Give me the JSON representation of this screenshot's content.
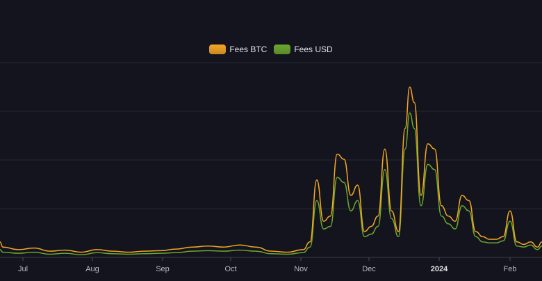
{
  "chart_data": {
    "type": "line",
    "legend": {
      "position": "top-center"
    },
    "grid": true,
    "x_ticks": [
      {
        "label": "Jul",
        "bold": false
      },
      {
        "label": "Aug",
        "bold": false
      },
      {
        "label": "Sep",
        "bold": false
      },
      {
        "label": "Oct",
        "bold": false
      },
      {
        "label": "Nov",
        "bold": false
      },
      {
        "label": "Dec",
        "bold": false
      },
      {
        "label": "2024",
        "bold": true
      },
      {
        "label": "Feb",
        "bold": false
      }
    ],
    "x": [
      "2023-06-15",
      "2023-06-22",
      "2023-06-29",
      "2023-07-06",
      "2023-07-13",
      "2023-07-20",
      "2023-07-27",
      "2023-08-03",
      "2023-08-10",
      "2023-08-17",
      "2023-08-24",
      "2023-08-31",
      "2023-09-07",
      "2023-09-14",
      "2023-09-21",
      "2023-09-28",
      "2023-10-05",
      "2023-10-12",
      "2023-10-19",
      "2023-10-26",
      "2023-11-02",
      "2023-11-05",
      "2023-11-08",
      "2023-11-11",
      "2023-11-14",
      "2023-11-17",
      "2023-11-20",
      "2023-11-23",
      "2023-11-26",
      "2023-11-29",
      "2023-12-02",
      "2023-12-05",
      "2023-12-08",
      "2023-12-11",
      "2023-12-14",
      "2023-12-17",
      "2023-12-19",
      "2023-12-21",
      "2023-12-24",
      "2023-12-27",
      "2023-12-30",
      "2024-01-02",
      "2024-01-05",
      "2024-01-08",
      "2024-01-11",
      "2024-01-14",
      "2024-01-17",
      "2024-01-20",
      "2024-01-23",
      "2024-01-26",
      "2024-01-29",
      "2024-02-01",
      "2024-02-04",
      "2024-02-07",
      "2024-02-10",
      "2024-02-13",
      "2024-02-16"
    ],
    "series": [
      {
        "name": "Fees BTC",
        "color": "#f5a623",
        "values": [
          0.3,
          0.2,
          0.15,
          0.18,
          0.12,
          0.14,
          0.1,
          0.15,
          0.12,
          0.1,
          0.12,
          0.13,
          0.16,
          0.2,
          0.22,
          0.2,
          0.24,
          0.2,
          0.12,
          0.1,
          0.15,
          0.3,
          1.5,
          0.7,
          0.8,
          2.0,
          1.9,
          1.2,
          1.4,
          0.5,
          0.6,
          0.8,
          2.1,
          0.9,
          0.5,
          2.5,
          3.3,
          3.0,
          1.2,
          2.2,
          2.1,
          1.0,
          0.8,
          0.7,
          1.2,
          1.1,
          0.5,
          0.4,
          0.35,
          0.35,
          0.4,
          0.9,
          0.3,
          0.25,
          0.3,
          0.2,
          0.3
        ]
      },
      {
        "name": "Fees USD",
        "color": "#6ba72f",
        "values": [
          0.15,
          0.1,
          0.08,
          0.1,
          0.06,
          0.08,
          0.05,
          0.09,
          0.07,
          0.06,
          0.07,
          0.08,
          0.09,
          0.12,
          0.13,
          0.12,
          0.14,
          0.12,
          0.07,
          0.06,
          0.09,
          0.2,
          1.1,
          0.55,
          0.6,
          1.55,
          1.45,
          0.9,
          1.1,
          0.4,
          0.45,
          0.6,
          1.7,
          0.75,
          0.4,
          2.1,
          2.8,
          2.5,
          1.0,
          1.8,
          1.7,
          0.8,
          0.65,
          0.55,
          1.0,
          0.9,
          0.4,
          0.3,
          0.28,
          0.28,
          0.32,
          0.7,
          0.22,
          0.2,
          0.24,
          0.15,
          0.22
        ]
      }
    ],
    "ylim": [
      0,
      3.8
    ]
  }
}
